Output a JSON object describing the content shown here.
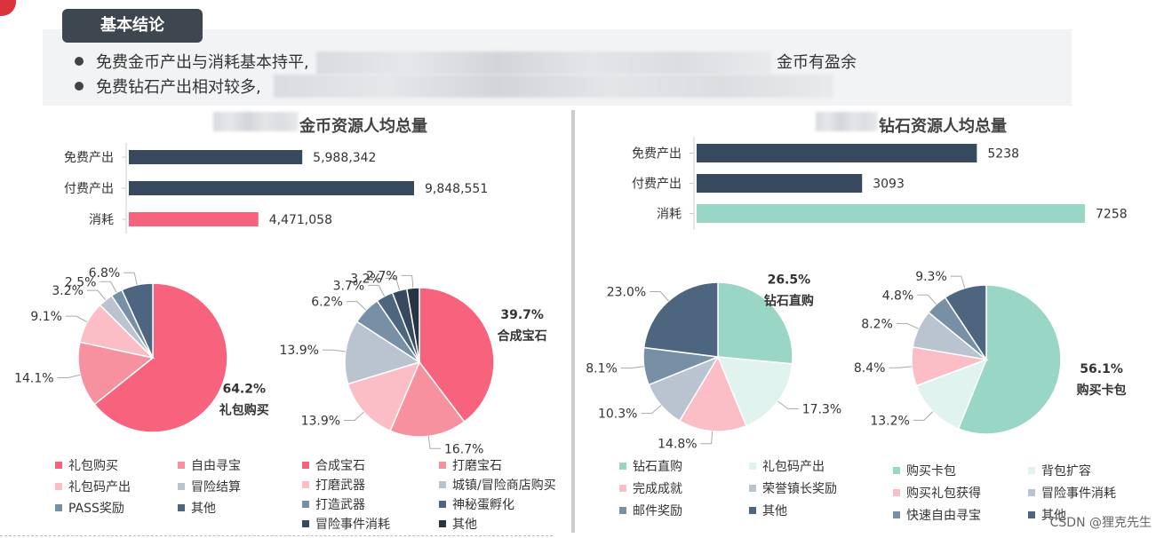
{
  "summary": {
    "tag": "基本结论",
    "bullets": [
      {
        "start": "免费金币产出与消耗基本持平,",
        "end": "金币有盈余"
      },
      {
        "start": "免费钻石产出相对较多,",
        "end": ""
      }
    ]
  },
  "left_panel": {
    "title_visible": "金币资源人均总量"
  },
  "right_panel": {
    "title_visible": "钻石资源人均总量"
  },
  "watermark": "CSDN @狸克先生",
  "chart_data": [
    {
      "type": "bar",
      "orientation": "horizontal",
      "categories": [
        "免费产出",
        "付费产出",
        "消耗"
      ],
      "values": [
        5988342,
        9848551,
        4471058
      ],
      "value_labels": [
        "5,988,342",
        "9,848,551",
        "4,471,058"
      ],
      "colors": [
        "#36495e",
        "#36495e",
        "#f7627d"
      ],
      "xlim": [
        0,
        11000000
      ]
    },
    {
      "type": "pie",
      "categories": [
        "礼包购买",
        "自由寻宝",
        "礼包码产出",
        "冒险结算",
        "PASS奖励",
        "其他"
      ],
      "values": [
        64.2,
        14.1,
        9.1,
        3.2,
        2.5,
        6.8
      ],
      "labels": [
        "64.2%",
        "14.1%",
        "9.1%",
        "3.2%",
        "2.5%",
        "6.8%"
      ],
      "highlight": {
        "label": "64.2%",
        "name": "礼包购买"
      },
      "colors": [
        "#f7627d",
        "#f8919f",
        "#fbbdc6",
        "#b9c4d0",
        "#7890a6",
        "#4e6580"
      ]
    },
    {
      "type": "pie",
      "categories": [
        "合成宝石",
        "打磨宝石",
        "打磨武器",
        "城镇/冒险商店购买",
        "打造武器",
        "神秘蛋孵化",
        "冒险事件消耗",
        "其他"
      ],
      "values": [
        39.7,
        16.7,
        13.9,
        13.9,
        6.2,
        3.7,
        3.2,
        2.7
      ],
      "labels": [
        "39.7%",
        "16.7%",
        "13.9%",
        "13.9%",
        "6.2%",
        "3.7%",
        "3.2%",
        "2.7%"
      ],
      "highlight": {
        "label": "39.7%",
        "name": "合成宝石"
      },
      "colors": [
        "#f7627d",
        "#f8919f",
        "#fbbdc6",
        "#b9c4d0",
        "#7890a6",
        "#4e6580",
        "#36495e",
        "#263444"
      ]
    },
    {
      "type": "bar",
      "orientation": "horizontal",
      "categories": [
        "免费产出",
        "付费产出",
        "消耗"
      ],
      "values": [
        5238,
        3093,
        7258
      ],
      "value_labels": [
        "5238",
        "3093",
        "7258"
      ],
      "colors": [
        "#36495e",
        "#36495e",
        "#99d6c6"
      ],
      "xlim": [
        0,
        7300
      ]
    },
    {
      "type": "pie",
      "categories": [
        "钻石直购",
        "礼包码产出",
        "完成成就",
        "荣誉镇长奖励",
        "邮件奖励",
        "其他"
      ],
      "values": [
        26.5,
        17.3,
        14.8,
        10.3,
        8.1,
        23.0
      ],
      "labels": [
        "26.5%",
        "17.3%",
        "14.8%",
        "10.3%",
        "8.1%",
        "23.0%"
      ],
      "highlight": {
        "label": "26.5%",
        "name": "钻石直购"
      },
      "colors": [
        "#99d6c6",
        "#e1f3ef",
        "#fbbdc6",
        "#b9c4d0",
        "#7890a6",
        "#4e6580"
      ]
    },
    {
      "type": "pie",
      "categories": [
        "购买卡包",
        "背包扩容",
        "购买礼包获得",
        "冒险事件消耗",
        "快速自由寻宝",
        "其他"
      ],
      "values": [
        56.1,
        13.2,
        8.4,
        8.2,
        4.8,
        9.3
      ],
      "labels": [
        "56.1%",
        "13.2%",
        "8.4%",
        "8.2%",
        "4.8%",
        "9.3%"
      ],
      "highlight": {
        "label": "56.1%",
        "name": "购买卡包"
      },
      "colors": [
        "#99d6c6",
        "#e1f3ef",
        "#fbbdc6",
        "#b9c4d0",
        "#7890a6",
        "#4e6580"
      ]
    }
  ]
}
